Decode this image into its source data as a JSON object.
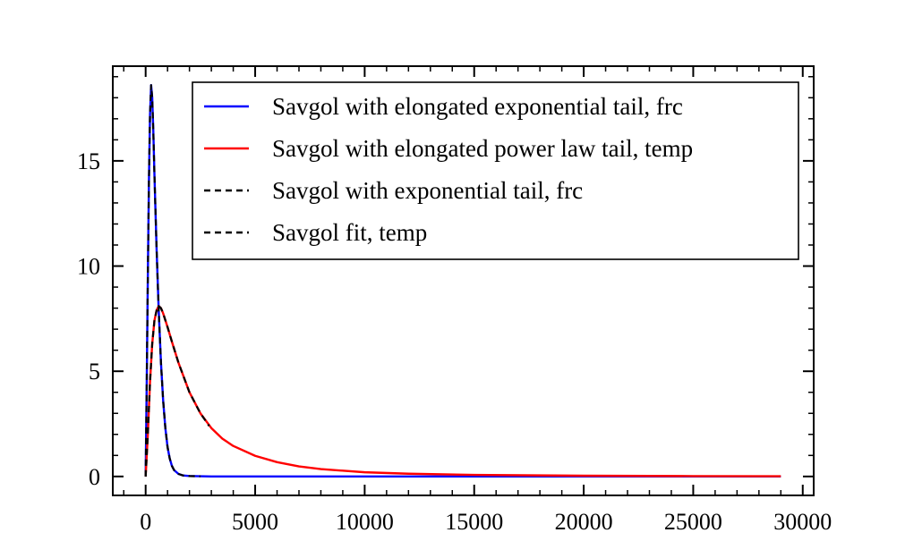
{
  "chart_data": {
    "type": "line",
    "title": "",
    "xlabel": "",
    "ylabel": "",
    "xlim": [
      -1500,
      30500
    ],
    "ylim": [
      -0.9,
      19.5
    ],
    "grid": false,
    "legend_position": "top-right",
    "x_ticks": [
      0,
      5000,
      10000,
      15000,
      20000,
      25000,
      30000
    ],
    "x_tick_labels": [
      "0",
      "5000",
      "10000",
      "15000",
      "20000",
      "25000",
      "30000"
    ],
    "y_ticks": [
      0,
      5,
      10,
      15
    ],
    "y_tick_labels": [
      "0",
      "5",
      "10",
      "15"
    ],
    "series": [
      {
        "name": "Savgol with elongated exponential tail, frc",
        "color": "#0000ff",
        "style": "solid",
        "x": [
          0,
          50,
          100,
          150,
          200,
          250,
          300,
          350,
          400,
          500,
          600,
          700,
          800,
          900,
          1000,
          1100,
          1200,
          1300,
          1500,
          1700,
          2000,
          2500,
          3000,
          5000,
          10000,
          15000,
          20000,
          25000,
          29000
        ],
        "y": [
          0,
          4.5,
          9.5,
          14.0,
          17.2,
          18.6,
          18.0,
          16.4,
          14.4,
          10.8,
          7.8,
          5.4,
          3.6,
          2.3,
          1.4,
          0.85,
          0.5,
          0.3,
          0.12,
          0.05,
          0.02,
          0.01,
          0.0,
          0.0,
          0.0,
          0.0,
          0.0,
          0.0,
          0.0
        ]
      },
      {
        "name": "Savgol with elongated power law tail, temp",
        "color": "#ff0000",
        "style": "solid",
        "x": [
          0,
          100,
          200,
          300,
          400,
          500,
          600,
          700,
          800,
          1000,
          1200,
          1500,
          2000,
          2500,
          3000,
          3500,
          4000,
          5000,
          6000,
          7000,
          8000,
          10000,
          12000,
          15000,
          20000,
          25000,
          29000
        ],
        "y": [
          0,
          2.0,
          4.5,
          6.3,
          7.4,
          7.9,
          8.1,
          8.0,
          7.75,
          7.1,
          6.4,
          5.4,
          4.0,
          3.0,
          2.3,
          1.8,
          1.45,
          0.98,
          0.68,
          0.48,
          0.35,
          0.2,
          0.13,
          0.075,
          0.035,
          0.018,
          0.01
        ]
      },
      {
        "name": "Savgol with exponential tail, frc",
        "color": "#000000",
        "style": "dashed",
        "x": [
          0,
          50,
          100,
          150,
          200,
          250,
          300,
          350,
          400,
          500,
          600,
          700,
          800,
          900,
          1000,
          1100,
          1200,
          1300,
          1500,
          1700,
          2000,
          2500
        ],
        "y": [
          0,
          4.5,
          9.5,
          14.0,
          17.2,
          18.6,
          18.0,
          16.4,
          14.4,
          10.8,
          7.8,
          5.4,
          3.6,
          2.3,
          1.4,
          0.85,
          0.5,
          0.3,
          0.12,
          0.05,
          0.02,
          0.01
        ]
      },
      {
        "name": "Savgol fit, temp",
        "color": "#000000",
        "style": "dashed",
        "x": [
          0,
          100,
          200,
          300,
          400,
          500,
          600,
          700,
          800,
          1000,
          1200,
          1500,
          2000,
          2500,
          2900
        ],
        "y": [
          0,
          2.0,
          4.5,
          6.3,
          7.4,
          7.9,
          8.1,
          8.0,
          7.75,
          7.1,
          6.4,
          5.4,
          4.0,
          3.0,
          2.4
        ]
      }
    ]
  }
}
